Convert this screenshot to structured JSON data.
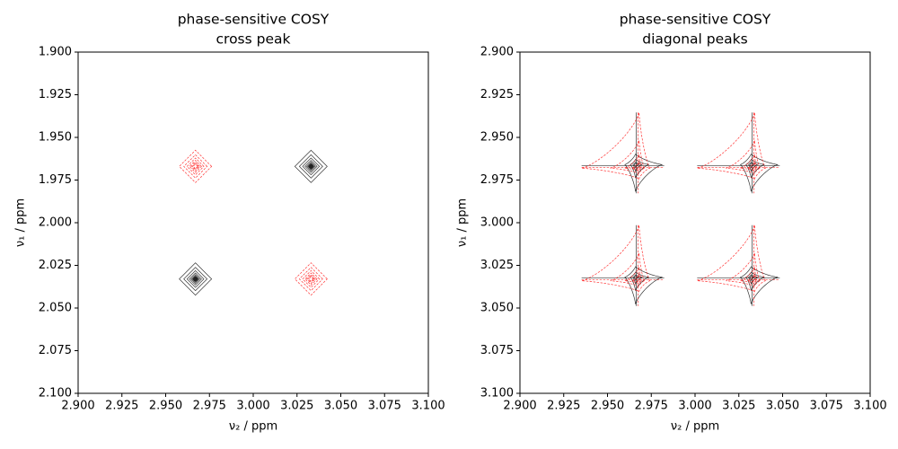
{
  "chart_data": [
    {
      "type": "contour",
      "lineshape": "absorptive",
      "title": "phase-sensitive COSY",
      "subtitle": "cross peak",
      "xlabel": "ν₂ / ppm",
      "ylabel": "ν₁ / ppm",
      "xlim": [
        2.9,
        3.1
      ],
      "ylim": [
        2.1,
        1.9
      ],
      "xticks": [
        {
          "value": 2.9,
          "label": "2.900"
        },
        {
          "value": 2.925,
          "label": "2.925"
        },
        {
          "value": 2.95,
          "label": "2.950"
        },
        {
          "value": 2.975,
          "label": "2.975"
        },
        {
          "value": 3.0,
          "label": "3.000"
        },
        {
          "value": 3.025,
          "label": "3.025"
        },
        {
          "value": 3.05,
          "label": "3.050"
        },
        {
          "value": 3.075,
          "label": "3.075"
        },
        {
          "value": 3.1,
          "label": "3.100"
        }
      ],
      "yticks": [
        {
          "value": 1.9,
          "label": "1.900"
        },
        {
          "value": 1.925,
          "label": "1.925"
        },
        {
          "value": 1.95,
          "label": "1.950"
        },
        {
          "value": 1.975,
          "label": "1.975"
        },
        {
          "value": 2.0,
          "label": "2.000"
        },
        {
          "value": 2.025,
          "label": "2.025"
        },
        {
          "value": 2.05,
          "label": "2.050"
        },
        {
          "value": 2.075,
          "label": "2.075"
        },
        {
          "value": 2.1,
          "label": "2.100"
        }
      ],
      "peaks": [
        {
          "x": 3.033,
          "y": 1.967,
          "color": "#000000"
        },
        {
          "x": 2.967,
          "y": 2.033,
          "color": "#000000"
        },
        {
          "x": 2.967,
          "y": 1.967,
          "color": "#ff0000"
        },
        {
          "x": 3.033,
          "y": 2.033,
          "color": "#ff0000"
        }
      ]
    },
    {
      "type": "contour",
      "lineshape": "dispersive",
      "title": "phase-sensitive COSY",
      "subtitle": "diagonal peaks",
      "xlabel": "ν₂ / ppm",
      "ylabel": "ν₁ / ppm",
      "xlim": [
        2.9,
        3.1
      ],
      "ylim": [
        3.1,
        2.9
      ],
      "xticks": [
        {
          "value": 2.9,
          "label": "2.900"
        },
        {
          "value": 2.925,
          "label": "2.925"
        },
        {
          "value": 2.95,
          "label": "2.950"
        },
        {
          "value": 2.975,
          "label": "2.975"
        },
        {
          "value": 3.0,
          "label": "3.000"
        },
        {
          "value": 3.025,
          "label": "3.025"
        },
        {
          "value": 3.05,
          "label": "3.050"
        },
        {
          "value": 3.075,
          "label": "3.075"
        },
        {
          "value": 3.1,
          "label": "3.100"
        }
      ],
      "yticks": [
        {
          "value": 2.9,
          "label": "2.900"
        },
        {
          "value": 2.925,
          "label": "2.925"
        },
        {
          "value": 2.95,
          "label": "2.950"
        },
        {
          "value": 2.975,
          "label": "2.975"
        },
        {
          "value": 3.0,
          "label": "3.000"
        },
        {
          "value": 3.025,
          "label": "3.025"
        },
        {
          "value": 3.05,
          "label": "3.050"
        },
        {
          "value": 3.075,
          "label": "3.075"
        },
        {
          "value": 3.1,
          "label": "3.100"
        }
      ],
      "peaks": [
        {
          "x": 2.967,
          "y": 2.967,
          "color": "#000000"
        },
        {
          "x": 2.967,
          "y": 2.967,
          "color": "#ff0000"
        },
        {
          "x": 3.033,
          "y": 2.967,
          "color": "#000000"
        },
        {
          "x": 3.033,
          "y": 2.967,
          "color": "#ff0000"
        },
        {
          "x": 2.967,
          "y": 3.033,
          "color": "#000000"
        },
        {
          "x": 2.967,
          "y": 3.033,
          "color": "#ff0000"
        },
        {
          "x": 3.033,
          "y": 3.033,
          "color": "#000000"
        },
        {
          "x": 3.033,
          "y": 3.033,
          "color": "#ff0000"
        }
      ]
    }
  ]
}
